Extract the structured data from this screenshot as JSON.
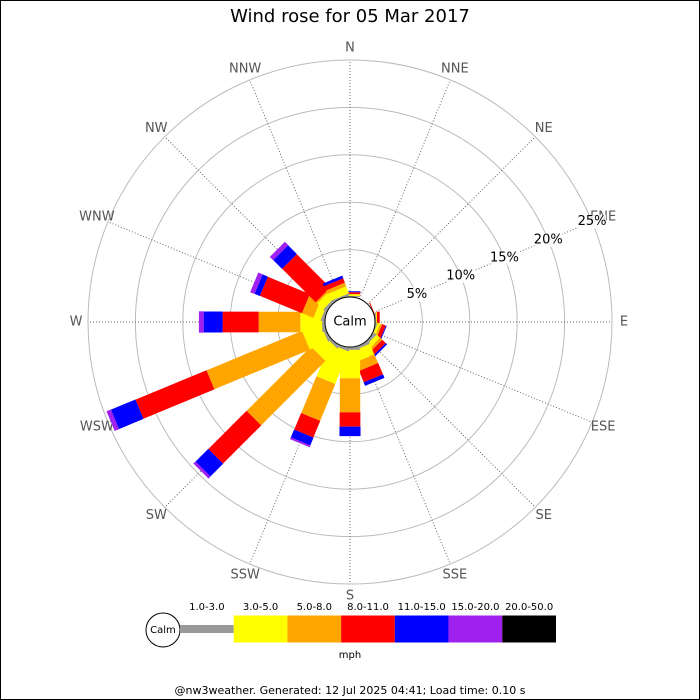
{
  "chart_data": {
    "type": "windrose",
    "title": "Wind rose for 05 Mar 2017",
    "categories": [
      "N",
      "NNE",
      "NE",
      "ENE",
      "E",
      "ESE",
      "SE",
      "SSE",
      "S",
      "SSW",
      "SW",
      "WSW",
      "W",
      "WNW",
      "NW",
      "NNW"
    ],
    "calm_label": "Calm",
    "units": "mph",
    "rlim": [
      0,
      25
    ],
    "rticks": [
      {
        "value": 5,
        "label": "5%"
      },
      {
        "value": 10,
        "label": "10%"
      },
      {
        "value": 15,
        "label": "15%"
      },
      {
        "value": 20,
        "label": "20%"
      },
      {
        "value": 25,
        "label": "25%"
      }
    ],
    "grid": true,
    "series": [
      {
        "name": "1.0-3.0",
        "color": "#999999",
        "values": [
          0.1,
          0,
          0,
          0,
          0.1,
          0.1,
          0.3,
          0.3,
          0.3,
          0.3,
          0.3,
          0.3,
          0.3,
          0.3,
          0.3,
          0.2
        ]
      },
      {
        "name": "3.0-5.0",
        "color": "#ffff00",
        "values": [
          0.2,
          0,
          0,
          0,
          0.1,
          0.3,
          0.5,
          1.2,
          3.0,
          3.7,
          1.8,
          2.1,
          2.3,
          0.8,
          0.9,
          0.8
        ]
      },
      {
        "name": "5.0-8.0",
        "color": "#ffa500",
        "values": [
          0,
          0,
          0,
          0,
          0,
          0.2,
          0.3,
          1.0,
          3.6,
          4.2,
          9.6,
          10.9,
          4.4,
          1.3,
          0.2,
          0.4
        ]
      },
      {
        "name": "8.0-11.0",
        "color": "#ff0000",
        "values": [
          0.2,
          0,
          0,
          0.1,
          0.3,
          0.4,
          0.5,
          1.3,
          1.5,
          1.9,
          5.7,
          8.1,
          3.8,
          4.8,
          5.0,
          0.5
        ]
      },
      {
        "name": "11.0-15.0",
        "color": "#0000ff",
        "values": [
          0.1,
          0,
          0,
          0,
          0,
          0.1,
          0.2,
          0.4,
          1.0,
          0.9,
          1.9,
          2.8,
          2.0,
          0.6,
          1.3,
          0.3
        ]
      },
      {
        "name": "15.0-20.0",
        "color": "#a020f0",
        "values": [
          0,
          0,
          0,
          0,
          0,
          0,
          0,
          0,
          0,
          0.2,
          0.3,
          0.5,
          0.5,
          0.5,
          0.5,
          0
        ]
      },
      {
        "name": "20.0-50.0",
        "color": "#000000",
        "values": [
          0,
          0,
          0,
          0,
          0,
          0,
          0,
          0,
          0,
          0,
          0,
          0,
          0,
          0,
          0,
          0
        ]
      }
    ],
    "footer": "@nw3weather. Generated: 12 Jul 2025 04:41; Load time: 0.10 s"
  }
}
